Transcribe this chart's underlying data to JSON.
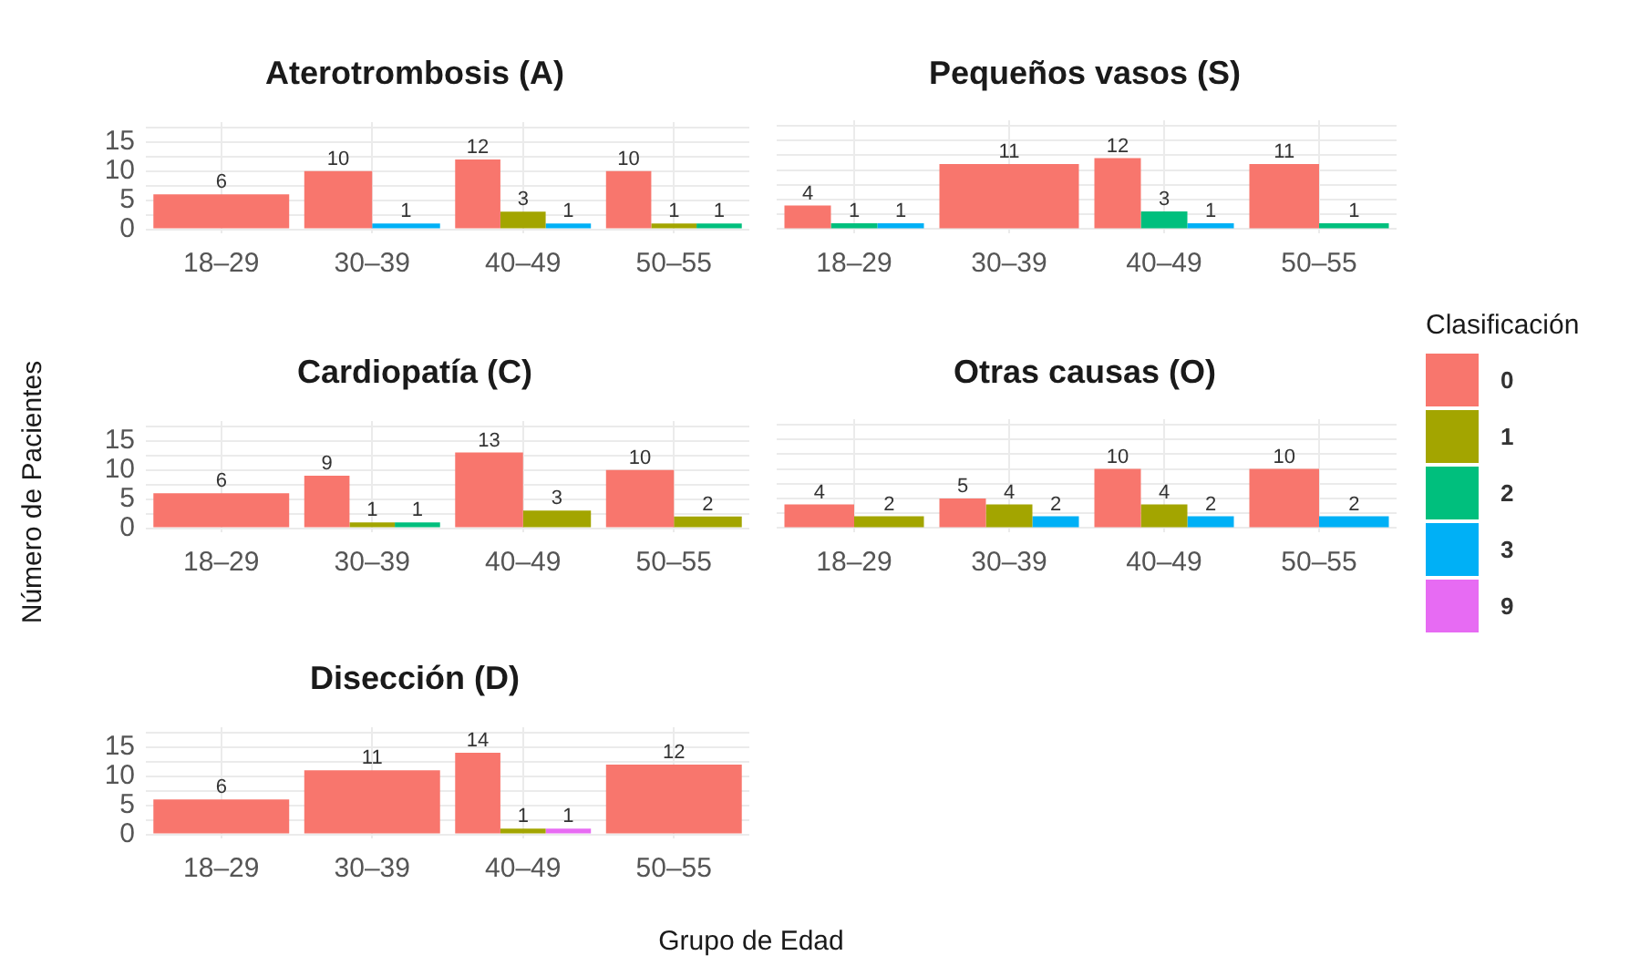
{
  "chart_data": [
    {
      "type": "bar",
      "title": "Aterotrombosis (A)",
      "categories": [
        "18–29",
        "30–39",
        "40–49",
        "50–55"
      ],
      "series": [
        {
          "name": "0",
          "color": "#f8766d",
          "values": [
            6,
            10,
            12,
            10
          ]
        },
        {
          "name": "1",
          "color": "#a3a500",
          "values": [
            null,
            null,
            3,
            1
          ]
        },
        {
          "name": "2",
          "color": "#00bf7d",
          "values": [
            null,
            null,
            null,
            1
          ]
        },
        {
          "name": "3",
          "color": "#00b0f6",
          "values": [
            null,
            1,
            1,
            null
          ]
        }
      ],
      "ylim": [
        -0.7,
        18.4
      ],
      "yticks": [
        0,
        {
          "value": 2.5,
          "label": null
        },
        5,
        {
          "value": 7.5,
          "label": null
        },
        10,
        {
          "value": 12.5,
          "label": null
        },
        15,
        {
          "value": 17.5,
          "label": null
        }
      ],
      "grid": true,
      "data_labels": true,
      "legend": "right",
      "legend_title": "Clasificación"
    },
    {
      "type": "bar",
      "title": "Pequeños vasos (S)",
      "categories": [
        "18–29",
        "30–39",
        "40–49",
        "50–55"
      ],
      "series": [
        {
          "name": "0",
          "color": "#f8766d",
          "values": [
            4,
            11,
            12,
            11
          ]
        },
        {
          "name": "2",
          "color": "#00bf7d",
          "values": [
            1,
            null,
            3,
            1
          ]
        },
        {
          "name": "3",
          "color": "#00b0f6",
          "values": [
            1,
            null,
            1,
            null
          ]
        }
      ],
      "ylim": [
        -0.7,
        18.4
      ],
      "yticks": [
        0,
        {
          "value": 2.5,
          "label": null
        },
        5,
        {
          "value": 7.5,
          "label": null
        },
        10,
        {
          "value": 12.5,
          "label": null
        },
        15,
        {
          "value": 17.5,
          "label": null
        }
      ],
      "grid": true,
      "data_labels": true,
      "tick_labels": "x"
    },
    {
      "type": "bar",
      "title": "Cardiopatía (C)",
      "ylabel": "Número de Pacientes",
      "categories": [
        "18–29",
        "30–39",
        "40–49",
        "50–55"
      ],
      "series": [
        {
          "name": "0",
          "color": "#f8766d",
          "values": [
            6,
            9,
            13,
            10
          ]
        },
        {
          "name": "1",
          "color": "#a3a500",
          "values": [
            null,
            1,
            3,
            2
          ]
        },
        {
          "name": "2",
          "color": "#00bf7d",
          "values": [
            null,
            1,
            null,
            null
          ]
        }
      ],
      "ylim": [
        -0.7,
        18.4
      ],
      "yticks": [
        0,
        {
          "value": 2.5,
          "label": null
        },
        5,
        {
          "value": 7.5,
          "label": null
        },
        10,
        {
          "value": 12.5,
          "label": null
        },
        15,
        {
          "value": 17.5,
          "label": null
        }
      ],
      "grid": true,
      "data_labels": true
    },
    {
      "type": "bar",
      "title": "Otras causas (O)",
      "categories": [
        "18–29",
        "30–39",
        "40–49",
        "50–55"
      ],
      "series": [
        {
          "name": "0",
          "color": "#f8766d",
          "values": [
            4,
            5,
            10,
            10
          ]
        },
        {
          "name": "1",
          "color": "#a3a500",
          "values": [
            2,
            4,
            4,
            null
          ]
        },
        {
          "name": "3",
          "color": "#00b0f6",
          "values": [
            null,
            2,
            2,
            2
          ]
        }
      ],
      "ylim": [
        -0.7,
        18.4
      ],
      "yticks": [
        0,
        {
          "value": 2.5,
          "label": null
        },
        5,
        {
          "value": 7.5,
          "label": null
        },
        10,
        {
          "value": 12.5,
          "label": null
        },
        15,
        {
          "value": 17.5,
          "label": null
        }
      ],
      "grid": true,
      "data_labels": true,
      "tick_labels": "x"
    },
    {
      "type": "bar",
      "title": "Disección (D)",
      "xlabel": "Grupo de Edad",
      "categories": [
        "18–29",
        "30–39",
        "40–49",
        "50–55"
      ],
      "series": [
        {
          "name": "0",
          "color": "#f8766d",
          "values": [
            6,
            11,
            14,
            12
          ]
        },
        {
          "name": "1",
          "color": "#a3a500",
          "values": [
            null,
            null,
            1,
            null
          ]
        },
        {
          "name": "9",
          "color": "#e76bf3",
          "values": [
            null,
            null,
            1,
            null
          ]
        }
      ],
      "ylim": [
        -0.7,
        18.4
      ],
      "yticks": [
        0,
        {
          "value": 2.5,
          "label": null
        },
        5,
        {
          "value": 7.5,
          "label": null
        },
        10,
        {
          "value": 12.5,
          "label": null
        },
        15,
        {
          "value": 17.5,
          "label": null
        }
      ],
      "grid": true,
      "data_labels": true
    }
  ]
}
